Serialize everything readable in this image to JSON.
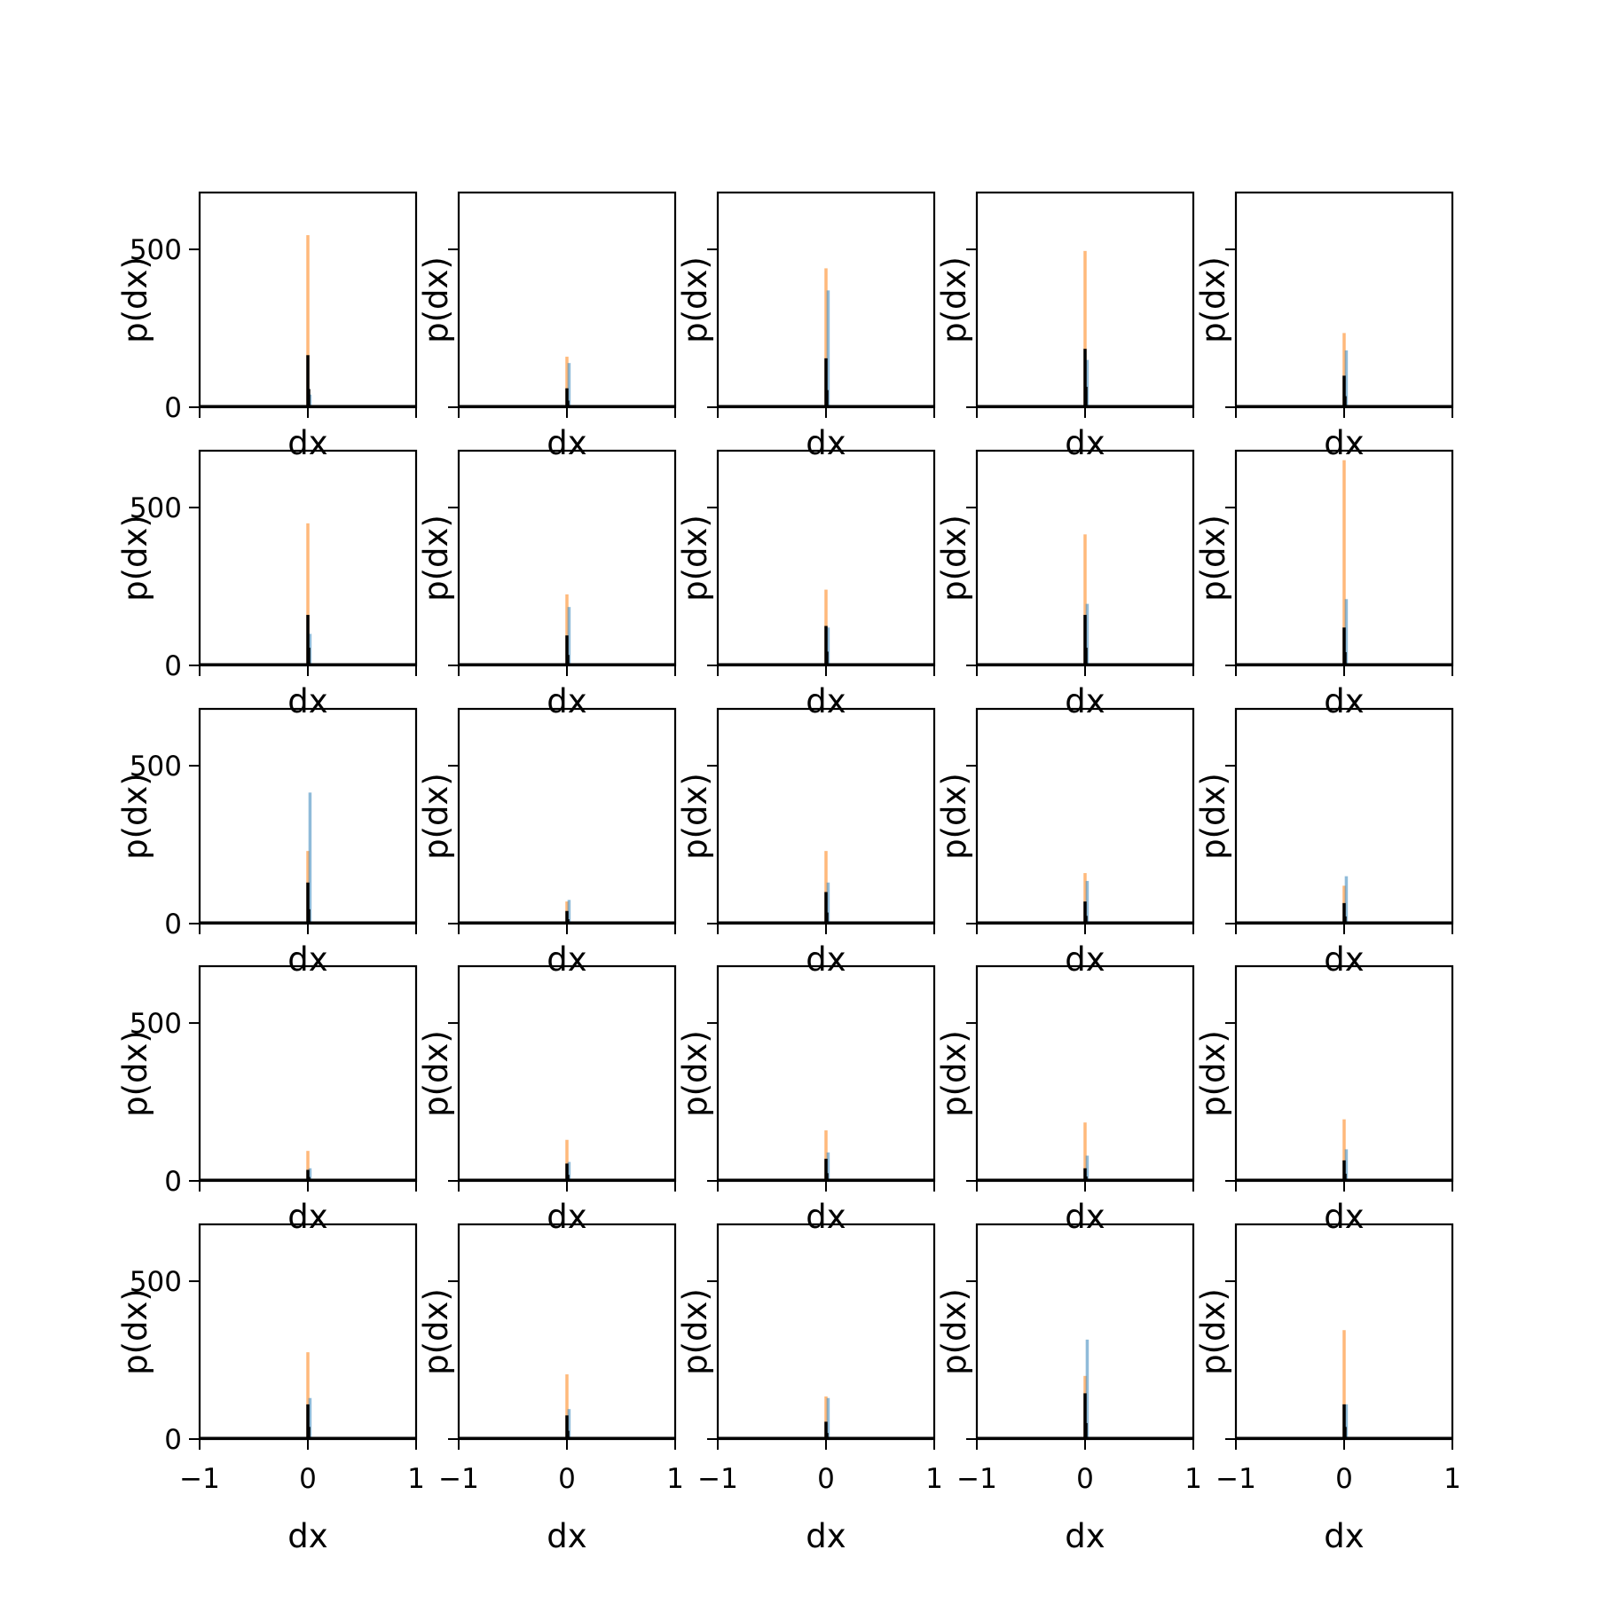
{
  "colors": {
    "blue": "#1f77b4",
    "orange": "#ff7f0e",
    "black": "#000000",
    "axes": "#000000"
  },
  "chart_data": {
    "type": "bar",
    "layout": {
      "rows": 5,
      "cols": 5
    },
    "xlabel": "dx",
    "ylabel": "p(dx)",
    "xlim": [
      -1,
      1
    ],
    "ylim": [
      0,
      680
    ],
    "xticks": [
      {
        "value": -1,
        "label": "−1"
      },
      {
        "value": 0,
        "label": "0"
      },
      {
        "value": 1,
        "label": "1"
      }
    ],
    "yticks": [
      {
        "value": 0,
        "label": "0"
      },
      {
        "value": 500,
        "label": "500"
      }
    ],
    "series_colors": [
      "orange",
      "blue",
      "black"
    ],
    "panels": [
      {
        "orange": 545,
        "blue": 40,
        "black": 165
      },
      {
        "orange": 160,
        "blue": 140,
        "black": 60
      },
      {
        "orange": 440,
        "blue": 370,
        "black": 155
      },
      {
        "orange": 495,
        "blue": 150,
        "black": 185
      },
      {
        "orange": 235,
        "blue": 180,
        "black": 100
      },
      {
        "orange": 450,
        "blue": 100,
        "black": 160
      },
      {
        "orange": 225,
        "blue": 185,
        "black": 95
      },
      {
        "orange": 240,
        "blue": 120,
        "black": 125
      },
      {
        "orange": 415,
        "blue": 195,
        "black": 160
      },
      {
        "orange": 650,
        "blue": 210,
        "black": 120
      },
      {
        "orange": 230,
        "blue": 415,
        "black": 130
      },
      {
        "orange": 70,
        "blue": 75,
        "black": 40
      },
      {
        "orange": 230,
        "blue": 130,
        "black": 100
      },
      {
        "orange": 160,
        "blue": 135,
        "black": 70
      },
      {
        "orange": 120,
        "blue": 150,
        "black": 65
      },
      {
        "orange": 95,
        "blue": 40,
        "black": 35
      },
      {
        "orange": 130,
        "blue": 60,
        "black": 55
      },
      {
        "orange": 160,
        "blue": 90,
        "black": 70
      },
      {
        "orange": 185,
        "blue": 80,
        "black": 40
      },
      {
        "orange": 195,
        "blue": 100,
        "black": 65
      },
      {
        "orange": 275,
        "blue": 130,
        "black": 110
      },
      {
        "orange": 205,
        "blue": 95,
        "black": 75
      },
      {
        "orange": 135,
        "blue": 130,
        "black": 55
      },
      {
        "orange": 200,
        "blue": 315,
        "black": 145
      },
      {
        "orange": 345,
        "blue": 110,
        "black": 110
      }
    ]
  }
}
